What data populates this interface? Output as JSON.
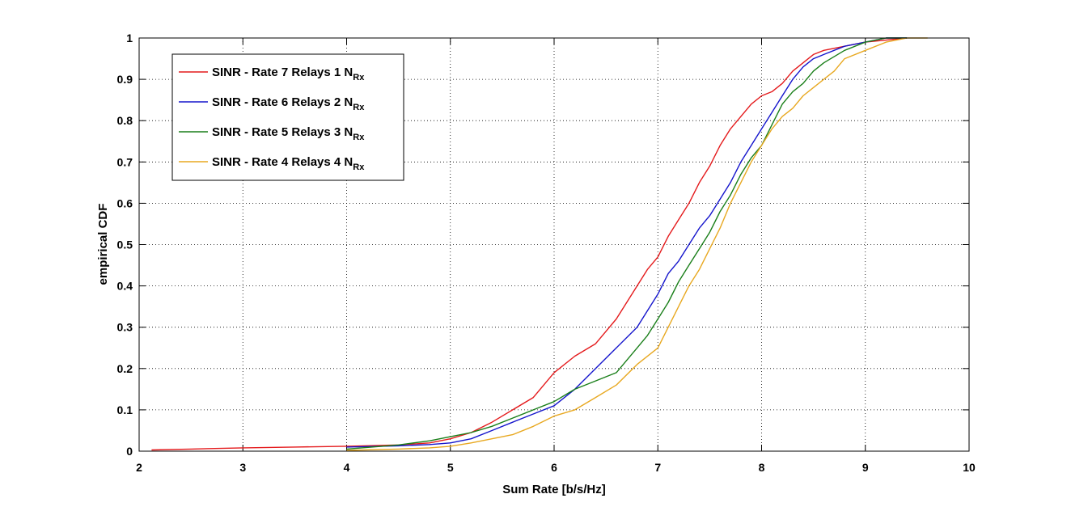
{
  "chart_data": {
    "type": "line",
    "title": "",
    "xlabel": "Sum Rate [b/s/Hz]",
    "ylabel": "empirical CDF",
    "xlim": [
      2,
      10
    ],
    "ylim": [
      0,
      1
    ],
    "xticks": [
      2,
      3,
      4,
      5,
      6,
      7,
      8,
      9,
      10
    ],
    "yticks": [
      0,
      0.1,
      0.2,
      0.3,
      0.4,
      0.5,
      0.6,
      0.7,
      0.8,
      0.9,
      1
    ],
    "grid": true,
    "legend_position": "top-left",
    "series": [
      {
        "name": "SINR - Rate 7 Relays 1 N",
        "name_sub": "Rx",
        "color": "#e41a1c",
        "x": [
          2.12,
          2.5,
          3.0,
          3.5,
          4.0,
          4.5,
          4.8,
          5.0,
          5.2,
          5.4,
          5.6,
          5.8,
          5.9,
          6.0,
          6.2,
          6.4,
          6.5,
          6.6,
          6.7,
          6.8,
          6.9,
          7.0,
          7.1,
          7.2,
          7.3,
          7.4,
          7.5,
          7.6,
          7.7,
          7.8,
          7.9,
          8.0,
          8.1,
          8.2,
          8.3,
          8.4,
          8.5,
          8.6,
          8.8,
          9.0,
          9.2,
          9.4
        ],
        "y": [
          0.003,
          0.005,
          0.008,
          0.01,
          0.012,
          0.015,
          0.02,
          0.03,
          0.045,
          0.07,
          0.1,
          0.13,
          0.16,
          0.19,
          0.23,
          0.26,
          0.29,
          0.32,
          0.36,
          0.4,
          0.44,
          0.47,
          0.52,
          0.56,
          0.6,
          0.65,
          0.69,
          0.74,
          0.78,
          0.81,
          0.84,
          0.86,
          0.87,
          0.89,
          0.92,
          0.94,
          0.96,
          0.97,
          0.98,
          0.99,
          0.995,
          1.0
        ]
      },
      {
        "name": "SINR - Rate 6 Relays 2 N",
        "name_sub": "Rx",
        "color": "#1515cc",
        "x": [
          4.0,
          4.5,
          4.8,
          5.0,
          5.2,
          5.4,
          5.6,
          5.8,
          6.0,
          6.2,
          6.4,
          6.6,
          6.8,
          6.9,
          7.0,
          7.1,
          7.2,
          7.3,
          7.4,
          7.5,
          7.6,
          7.7,
          7.8,
          7.9,
          8.0,
          8.1,
          8.2,
          8.3,
          8.4,
          8.5,
          8.6,
          8.8,
          9.0,
          9.2,
          9.4
        ],
        "y": [
          0.01,
          0.013,
          0.016,
          0.02,
          0.03,
          0.05,
          0.07,
          0.09,
          0.11,
          0.15,
          0.2,
          0.25,
          0.3,
          0.34,
          0.38,
          0.43,
          0.46,
          0.5,
          0.54,
          0.57,
          0.61,
          0.65,
          0.7,
          0.74,
          0.78,
          0.82,
          0.86,
          0.9,
          0.93,
          0.95,
          0.96,
          0.98,
          0.99,
          1.0,
          1.0
        ]
      },
      {
        "name": "SINR - Rate 5 Relays 3 N",
        "name_sub": "Rx",
        "color": "#1a7f1a",
        "x": [
          4.0,
          4.5,
          4.8,
          5.0,
          5.2,
          5.4,
          5.6,
          5.8,
          6.0,
          6.2,
          6.4,
          6.6,
          6.8,
          6.9,
          7.0,
          7.1,
          7.2,
          7.3,
          7.4,
          7.5,
          7.6,
          7.7,
          7.8,
          7.9,
          8.0,
          8.1,
          8.2,
          8.3,
          8.4,
          8.5,
          8.6,
          8.8,
          9.0,
          9.2,
          9.4
        ],
        "y": [
          0.005,
          0.015,
          0.025,
          0.035,
          0.045,
          0.06,
          0.08,
          0.1,
          0.12,
          0.15,
          0.17,
          0.19,
          0.25,
          0.28,
          0.32,
          0.36,
          0.41,
          0.45,
          0.49,
          0.53,
          0.58,
          0.62,
          0.67,
          0.71,
          0.74,
          0.79,
          0.84,
          0.87,
          0.89,
          0.92,
          0.94,
          0.97,
          0.99,
          1.0,
          1.0
        ]
      },
      {
        "name": "SINR - Rate 4 Relays 4 N",
        "name_sub": "Rx",
        "color": "#e8a820",
        "x": [
          4.0,
          4.5,
          4.8,
          5.0,
          5.2,
          5.4,
          5.6,
          5.8,
          6.0,
          6.2,
          6.4,
          6.6,
          6.8,
          7.0,
          7.1,
          7.2,
          7.3,
          7.4,
          7.5,
          7.6,
          7.7,
          7.8,
          7.9,
          8.0,
          8.1,
          8.2,
          8.3,
          8.4,
          8.5,
          8.6,
          8.7,
          8.8,
          9.0,
          9.2,
          9.4,
          9.6
        ],
        "y": [
          0.002,
          0.005,
          0.008,
          0.012,
          0.02,
          0.03,
          0.04,
          0.06,
          0.085,
          0.1,
          0.13,
          0.16,
          0.21,
          0.25,
          0.3,
          0.35,
          0.4,
          0.44,
          0.49,
          0.54,
          0.6,
          0.65,
          0.7,
          0.74,
          0.78,
          0.81,
          0.83,
          0.86,
          0.88,
          0.9,
          0.92,
          0.95,
          0.97,
          0.99,
          1.0,
          1.0
        ]
      }
    ]
  }
}
